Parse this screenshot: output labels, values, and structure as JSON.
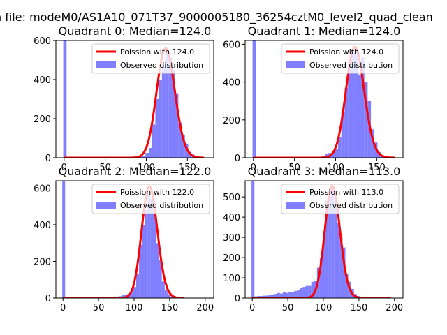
{
  "figure": {
    "suptitle": "n file: modeM0/AS1A10_071T37_9000005180_36254cztM0_level2_quad_clean",
    "colors": {
      "observed": "#7f7fff",
      "poisson": "#ff0000"
    }
  },
  "chart_data": [
    {
      "type": "bar",
      "title": "Quadrant 0: Median=124.0",
      "xlim": [
        -10,
        182
      ],
      "ylim": [
        0,
        600
      ],
      "xticks": [
        0,
        50,
        100,
        150
      ],
      "yticks": [
        0,
        200,
        400,
        600
      ],
      "legend": {
        "placement": "upper-right",
        "entries": [
          "Poission with 124.0",
          "Observed distribution"
        ]
      },
      "poisson_mean": 124.0,
      "poisson_peak": 560,
      "fit_range": [
        0,
        170
      ],
      "bins": [
        [
          -1,
          3,
          600
        ],
        [
          3,
          7,
          3
        ],
        [
          7,
          11,
          3
        ],
        [
          11,
          15,
          3
        ],
        [
          15,
          19,
          3
        ],
        [
          19,
          23,
          3
        ],
        [
          23,
          27,
          3
        ],
        [
          27,
          31,
          3
        ],
        [
          31,
          35,
          3
        ],
        [
          35,
          39,
          3
        ],
        [
          39,
          43,
          3
        ],
        [
          43,
          47,
          3
        ],
        [
          47,
          51,
          3
        ],
        [
          51,
          55,
          3
        ],
        [
          55,
          59,
          3
        ],
        [
          59,
          63,
          3
        ],
        [
          63,
          67,
          3
        ],
        [
          67,
          71,
          3
        ],
        [
          71,
          75,
          3
        ],
        [
          75,
          79,
          3
        ],
        [
          79,
          83,
          3
        ],
        [
          83,
          87,
          5
        ],
        [
          87,
          91,
          8
        ],
        [
          91,
          95,
          6
        ],
        [
          95,
          99,
          10
        ],
        [
          99,
          103,
          25
        ],
        [
          103,
          107,
          50
        ],
        [
          107,
          111,
          170
        ],
        [
          111,
          115,
          300
        ],
        [
          115,
          119,
          400
        ],
        [
          119,
          123,
          470
        ],
        [
          123,
          127,
          560
        ],
        [
          127,
          131,
          515
        ],
        [
          131,
          135,
          450
        ],
        [
          135,
          139,
          330
        ],
        [
          139,
          143,
          180
        ],
        [
          143,
          147,
          115
        ],
        [
          147,
          151,
          70
        ],
        [
          151,
          155,
          30
        ],
        [
          155,
          159,
          15
        ],
        [
          159,
          163,
          5
        ]
      ]
    },
    {
      "type": "bar",
      "title": "Quadrant 1: Median=124.0",
      "xlim": [
        -10,
        182
      ],
      "ylim": [
        0,
        620
      ],
      "xticks": [
        0,
        50,
        100,
        150
      ],
      "yticks": [
        0,
        200,
        400,
        600
      ],
      "legend": {
        "placement": "upper-right",
        "entries": [
          "Poission with 124.0",
          "Observed distribution"
        ]
      },
      "poisson_mean": 124.0,
      "poisson_peak": 585,
      "fit_range": [
        0,
        172
      ],
      "bins": [
        [
          -1,
          3,
          640
        ],
        [
          3,
          7,
          3
        ],
        [
          7,
          11,
          3
        ],
        [
          11,
          15,
          3
        ],
        [
          15,
          19,
          3
        ],
        [
          19,
          23,
          3
        ],
        [
          23,
          27,
          3
        ],
        [
          27,
          31,
          3
        ],
        [
          31,
          35,
          3
        ],
        [
          35,
          39,
          3
        ],
        [
          39,
          43,
          3
        ],
        [
          43,
          47,
          3
        ],
        [
          47,
          51,
          3
        ],
        [
          51,
          55,
          3
        ],
        [
          55,
          59,
          3
        ],
        [
          59,
          63,
          3
        ],
        [
          63,
          67,
          3
        ],
        [
          67,
          71,
          3
        ],
        [
          71,
          75,
          3
        ],
        [
          75,
          79,
          3
        ],
        [
          79,
          83,
          5
        ],
        [
          83,
          87,
          10
        ],
        [
          87,
          91,
          20
        ],
        [
          91,
          95,
          25
        ],
        [
          95,
          99,
          30
        ],
        [
          99,
          103,
          45
        ],
        [
          103,
          107,
          110
        ],
        [
          107,
          111,
          240
        ],
        [
          111,
          115,
          370
        ],
        [
          115,
          119,
          470
        ],
        [
          119,
          123,
          560
        ],
        [
          123,
          127,
          585
        ],
        [
          127,
          131,
          440
        ],
        [
          131,
          135,
          530
        ],
        [
          135,
          139,
          400
        ],
        [
          139,
          143,
          300
        ],
        [
          143,
          147,
          150
        ],
        [
          147,
          151,
          80
        ],
        [
          151,
          155,
          30
        ],
        [
          155,
          159,
          10
        ],
        [
          159,
          163,
          5
        ]
      ]
    },
    {
      "type": "bar",
      "title": "Quadrant 2: Median=122.0",
      "xlim": [
        -10,
        212
      ],
      "ylim": [
        0,
        640
      ],
      "xticks": [
        0,
        50,
        100,
        150,
        200
      ],
      "yticks": [
        0,
        200,
        400,
        600
      ],
      "legend": {
        "placement": "upper-right",
        "entries": [
          "Poission with 122.0",
          "Observed distribution"
        ]
      },
      "poisson_mean": 122.0,
      "poisson_peak": 610,
      "fit_range": [
        0,
        170
      ],
      "bins": [
        [
          -1,
          3,
          640
        ],
        [
          3,
          7,
          3
        ],
        [
          7,
          11,
          3
        ],
        [
          11,
          15,
          3
        ],
        [
          15,
          19,
          3
        ],
        [
          19,
          23,
          3
        ],
        [
          23,
          27,
          3
        ],
        [
          27,
          31,
          3
        ],
        [
          31,
          35,
          3
        ],
        [
          35,
          39,
          3
        ],
        [
          39,
          43,
          3
        ],
        [
          43,
          47,
          3
        ],
        [
          47,
          51,
          3
        ],
        [
          51,
          55,
          3
        ],
        [
          55,
          59,
          3
        ],
        [
          59,
          63,
          3
        ],
        [
          63,
          67,
          3
        ],
        [
          67,
          71,
          3
        ],
        [
          71,
          75,
          8
        ],
        [
          75,
          79,
          8
        ],
        [
          79,
          83,
          10
        ],
        [
          83,
          87,
          15
        ],
        [
          87,
          91,
          20
        ],
        [
          91,
          95,
          25
        ],
        [
          95,
          99,
          30
        ],
        [
          99,
          103,
          60
        ],
        [
          103,
          107,
          130
        ],
        [
          107,
          111,
          290
        ],
        [
          111,
          115,
          400
        ],
        [
          115,
          119,
          480
        ],
        [
          119,
          123,
          560
        ],
        [
          123,
          127,
          540
        ],
        [
          127,
          131,
          470
        ],
        [
          131,
          135,
          300
        ],
        [
          135,
          139,
          210
        ],
        [
          139,
          143,
          90
        ],
        [
          143,
          147,
          45
        ],
        [
          147,
          151,
          20
        ],
        [
          151,
          155,
          8
        ],
        [
          155,
          159,
          4
        ]
      ]
    },
    {
      "type": "bar",
      "title": "Quadrant 3: Median=113.0",
      "xlim": [
        -10,
        212
      ],
      "ylim": [
        0,
        580
      ],
      "xticks": [
        0,
        50,
        100,
        150,
        200
      ],
      "yticks": [
        0,
        100,
        200,
        300,
        400,
        500
      ],
      "legend": {
        "placement": "upper-right",
        "entries": [
          "Poission with 113.0",
          "Observed distribution"
        ]
      },
      "poisson_mean": 113.0,
      "poisson_peak": 555,
      "fit_range": [
        0,
        195
      ],
      "bins": [
        [
          -1,
          3,
          580
        ],
        [
          3,
          7,
          8
        ],
        [
          7,
          11,
          10
        ],
        [
          11,
          15,
          10
        ],
        [
          15,
          19,
          12
        ],
        [
          19,
          23,
          12
        ],
        [
          23,
          27,
          15
        ],
        [
          27,
          31,
          18
        ],
        [
          31,
          35,
          20
        ],
        [
          35,
          39,
          25
        ],
        [
          39,
          43,
          22
        ],
        [
          43,
          47,
          30
        ],
        [
          47,
          51,
          25
        ],
        [
          51,
          55,
          28
        ],
        [
          55,
          59,
          30
        ],
        [
          59,
          63,
          35
        ],
        [
          63,
          67,
          40
        ],
        [
          67,
          71,
          50
        ],
        [
          71,
          75,
          55
        ],
        [
          75,
          79,
          60
        ],
        [
          79,
          83,
          60
        ],
        [
          83,
          87,
          80
        ],
        [
          87,
          91,
          85
        ],
        [
          91,
          95,
          150
        ],
        [
          95,
          99,
          200
        ],
        [
          99,
          103,
          330
        ],
        [
          103,
          107,
          480
        ],
        [
          107,
          111,
          520
        ],
        [
          111,
          115,
          545
        ],
        [
          115,
          119,
          480
        ],
        [
          119,
          123,
          370
        ],
        [
          123,
          127,
          300
        ],
        [
          127,
          131,
          250
        ],
        [
          131,
          135,
          120
        ],
        [
          135,
          139,
          80
        ],
        [
          139,
          143,
          45
        ],
        [
          143,
          147,
          20
        ],
        [
          147,
          151,
          10
        ]
      ]
    }
  ]
}
